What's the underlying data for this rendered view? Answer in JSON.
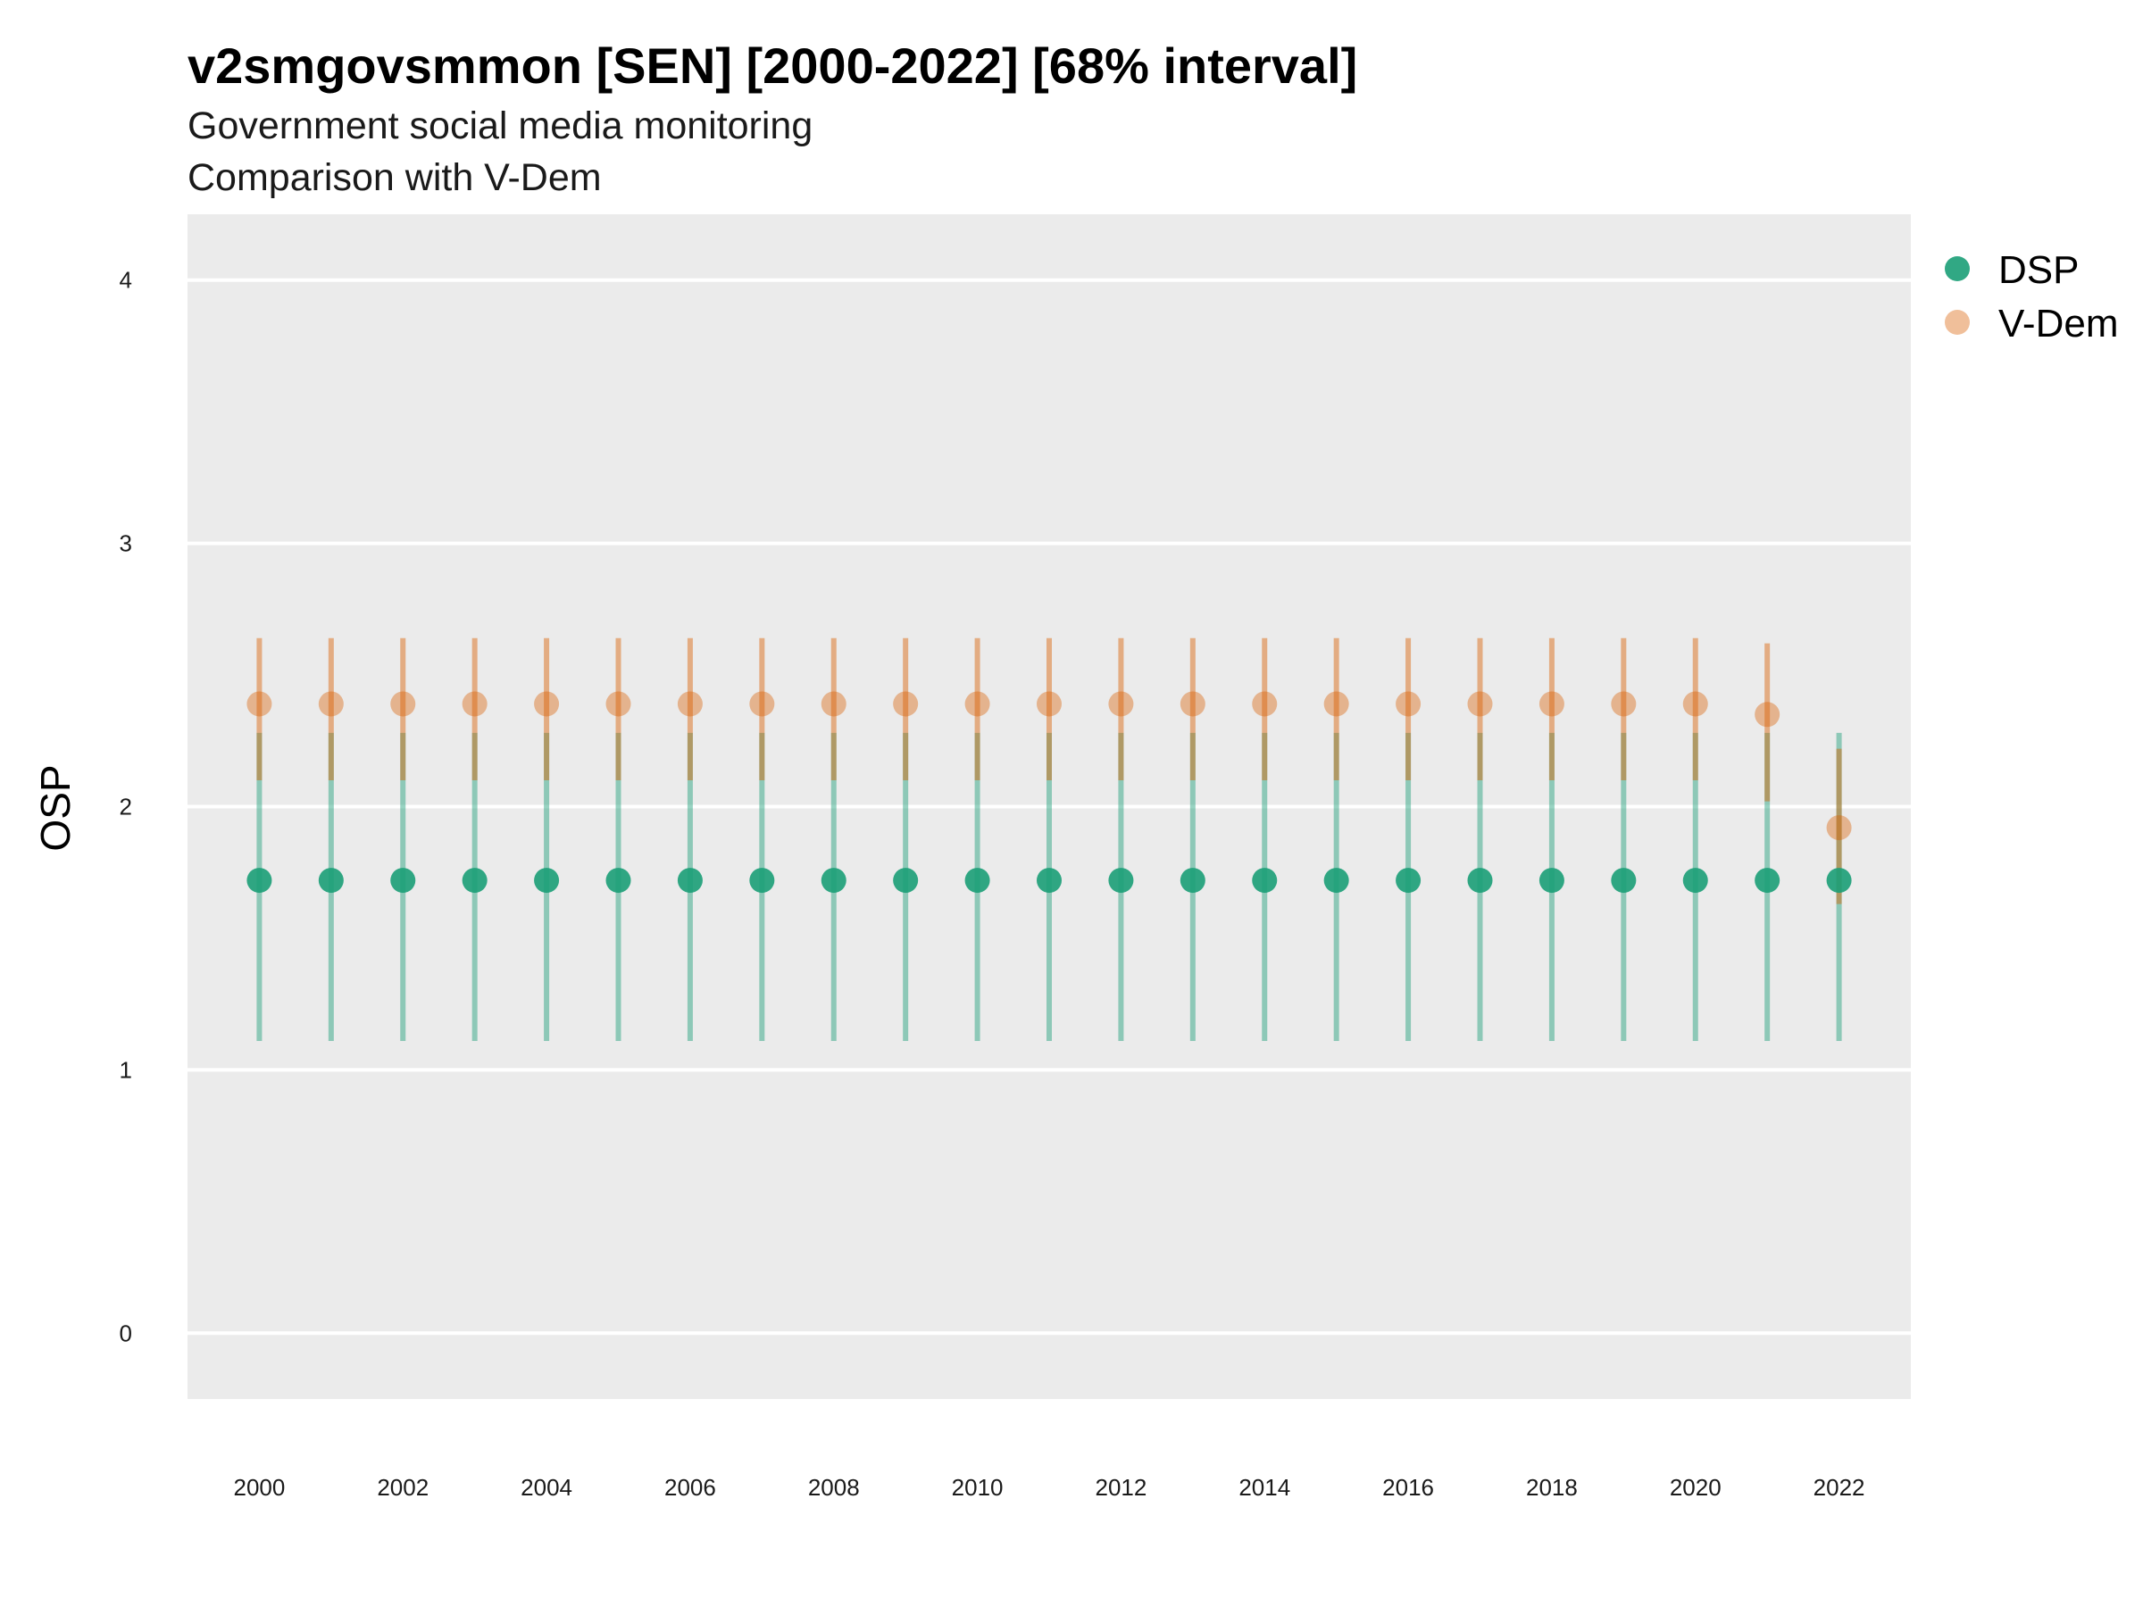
{
  "chart_data": {
    "type": "scatter",
    "title": "v2smgovsmmon [SEN] [2000-2022] [68% interval]",
    "subtitle_lines": [
      "Government social media monitoring",
      "Comparison with V-Dem"
    ],
    "xlabel": "",
    "ylabel": "OSP",
    "x_ticks": [
      "2000",
      "2002",
      "2004",
      "2006",
      "2008",
      "2010",
      "2012",
      "2014",
      "2016",
      "2018",
      "2020",
      "2022"
    ],
    "y_ticks": [
      "0",
      "1",
      "2",
      "3",
      "4"
    ],
    "ylim": [
      -0.25,
      4.25
    ],
    "xlim": [
      1999,
      2023
    ],
    "grid": true,
    "legend_position": "right",
    "x": [
      2000,
      2001,
      2002,
      2003,
      2004,
      2005,
      2006,
      2007,
      2008,
      2009,
      2010,
      2011,
      2012,
      2013,
      2014,
      2015,
      2016,
      2017,
      2018,
      2019,
      2020,
      2021,
      2022
    ],
    "series": [
      {
        "name": "DSP",
        "color": "#1b9e77",
        "values": [
          1.72,
          1.72,
          1.72,
          1.72,
          1.72,
          1.72,
          1.72,
          1.72,
          1.72,
          1.72,
          1.72,
          1.72,
          1.72,
          1.72,
          1.72,
          1.72,
          1.72,
          1.72,
          1.72,
          1.72,
          1.72,
          1.72,
          1.72
        ],
        "lower": [
          1.11,
          1.11,
          1.11,
          1.11,
          1.11,
          1.11,
          1.11,
          1.11,
          1.11,
          1.11,
          1.11,
          1.11,
          1.11,
          1.11,
          1.11,
          1.11,
          1.11,
          1.11,
          1.11,
          1.11,
          1.11,
          1.11,
          1.11
        ],
        "upper": [
          2.28,
          2.28,
          2.28,
          2.28,
          2.28,
          2.28,
          2.28,
          2.28,
          2.28,
          2.28,
          2.28,
          2.28,
          2.28,
          2.28,
          2.28,
          2.28,
          2.28,
          2.28,
          2.28,
          2.28,
          2.28,
          2.28,
          2.28
        ]
      },
      {
        "name": "V-Dem",
        "color": "#d95f02",
        "values": [
          2.39,
          2.39,
          2.39,
          2.39,
          2.39,
          2.39,
          2.39,
          2.39,
          2.39,
          2.39,
          2.39,
          2.39,
          2.39,
          2.39,
          2.39,
          2.39,
          2.39,
          2.39,
          2.39,
          2.39,
          2.39,
          2.35,
          1.92
        ],
        "lower": [
          2.1,
          2.1,
          2.1,
          2.1,
          2.1,
          2.1,
          2.1,
          2.1,
          2.1,
          2.1,
          2.1,
          2.1,
          2.1,
          2.1,
          2.1,
          2.1,
          2.1,
          2.1,
          2.1,
          2.1,
          2.1,
          2.02,
          1.63
        ],
        "upper": [
          2.64,
          2.64,
          2.64,
          2.64,
          2.64,
          2.64,
          2.64,
          2.64,
          2.64,
          2.64,
          2.64,
          2.64,
          2.64,
          2.64,
          2.64,
          2.64,
          2.64,
          2.64,
          2.64,
          2.64,
          2.64,
          2.62,
          2.22
        ]
      }
    ]
  }
}
